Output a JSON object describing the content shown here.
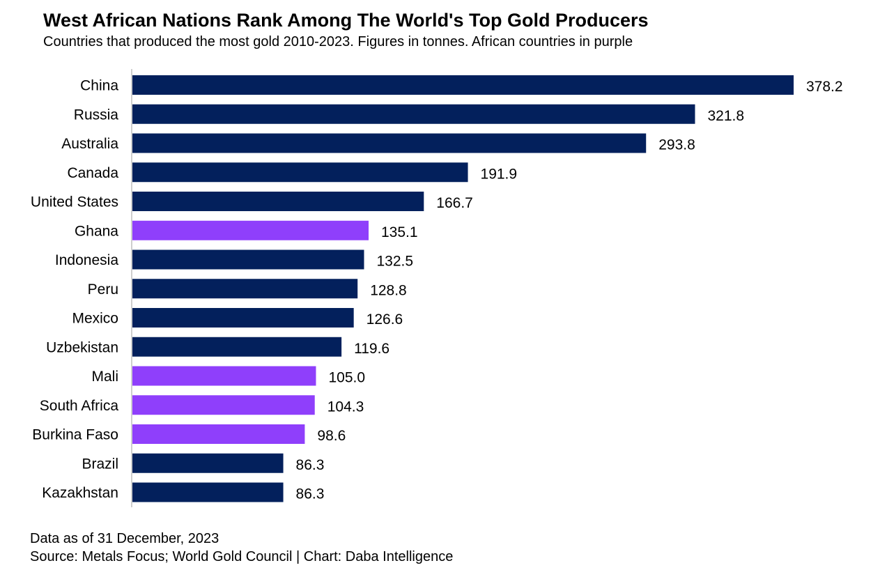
{
  "title": "West African Nations Rank Among The World's Top Gold Producers",
  "subtitle": "Countries that produced the most gold 2010-2023. Figures in tonnes. African countries in purple",
  "footnote_date": "Data as of 31 December, 2023",
  "footnote_source": "Source: Metals Focus; World Gold Council | Chart: Daba Intelligence",
  "colors": {
    "default_bar": "#03205c",
    "african_bar": "#8f3ffb",
    "axis": "#cfcfcf"
  },
  "chart_data": {
    "type": "bar",
    "orientation": "horizontal",
    "title": "West African Nations Rank Among The World's Top Gold Producers",
    "subtitle": "Countries that produced the most gold 2010-2023. Figures in tonnes. African countries in purple",
    "categories": [
      "China",
      "Russia",
      "Australia",
      "Canada",
      "United States",
      "Ghana",
      "Indonesia",
      "Peru",
      "Mexico",
      "Uzbekistan",
      "Mali",
      "South Africa",
      "Burkina Faso",
      "Brazil",
      "Kazakhstan"
    ],
    "values": [
      378.2,
      321.8,
      293.8,
      191.9,
      166.7,
      135.1,
      132.5,
      128.8,
      126.6,
      119.6,
      105.0,
      104.3,
      98.6,
      86.3,
      86.3
    ],
    "value_labels": [
      "378.2",
      "321.8",
      "293.8",
      "191.9",
      "166.7",
      "135.1",
      "132.5",
      "128.8",
      "126.6",
      "119.6",
      "105.0",
      "104.3",
      "98.6",
      "86.3",
      "86.3"
    ],
    "african": [
      false,
      false,
      false,
      false,
      false,
      true,
      false,
      false,
      false,
      false,
      true,
      true,
      true,
      false,
      false
    ],
    "xlim": [
      0,
      378.2
    ],
    "grid": false,
    "legend": "none",
    "data_labels": true
  }
}
